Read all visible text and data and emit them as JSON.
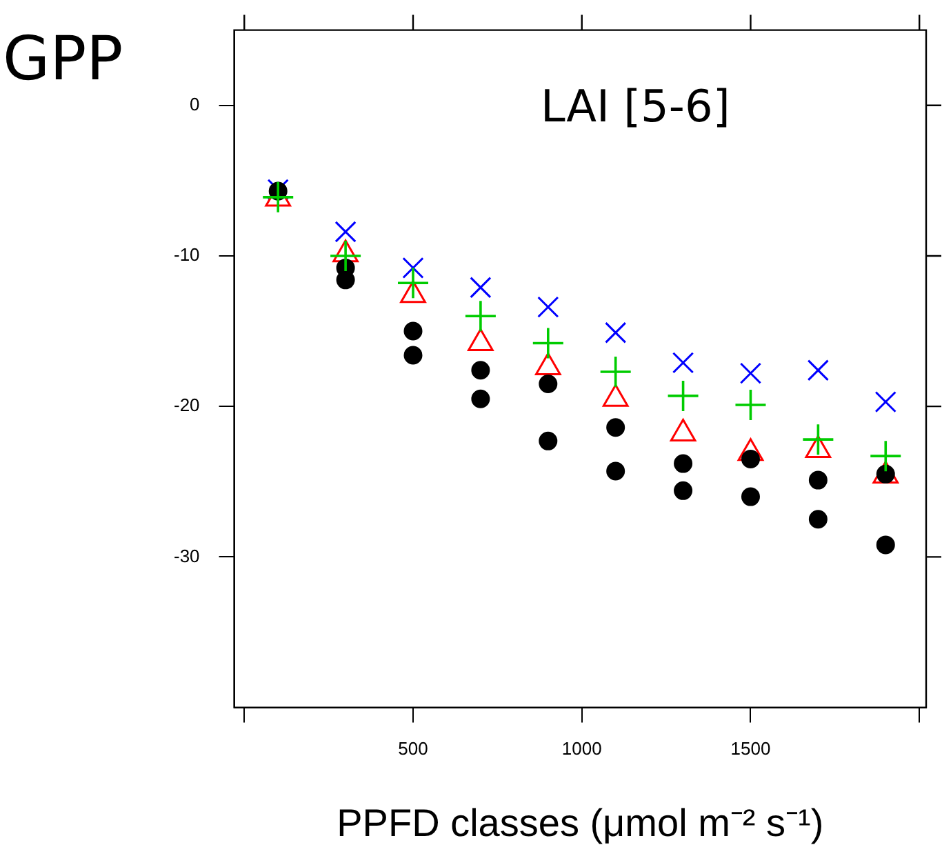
{
  "chart_data": {
    "type": "scatter",
    "title": "LAI [5-6]",
    "ylabel": "GPP",
    "xlabel": "PPFD classes (μmol m⁻² s⁻¹)",
    "x": [
      100,
      300,
      500,
      700,
      900,
      1100,
      1300,
      1500,
      1700,
      1900
    ],
    "series": [
      {
        "color": "#0000ff",
        "marker": "x",
        "values": [
          -5.6,
          -8.4,
          -10.8,
          -12.1,
          -13.4,
          -15.1,
          -17.1,
          -17.8,
          -17.6,
          -19.7
        ]
      },
      {
        "color": "#00cc00",
        "marker": "cross",
        "values": [
          -6.1,
          -10.0,
          -11.8,
          -14.0,
          -15.8,
          -17.7,
          -19.3,
          -19.9,
          -22.2,
          -23.3
        ]
      },
      {
        "color": "#ff0000",
        "marker": "triangle",
        "values": [
          -6.2,
          -9.9,
          -12.6,
          -15.8,
          -17.4,
          -19.5,
          -21.8,
          -23.1,
          -22.9,
          -24.6
        ]
      },
      {
        "color": "#000000",
        "marker": "circle",
        "values": [
          null,
          -10.8,
          -15.0,
          -17.6,
          -18.5,
          -21.4,
          -23.8,
          -23.5,
          -24.9,
          -24.5
        ]
      },
      {
        "color": "#000000",
        "marker": "circle",
        "values": [
          -5.7,
          -11.6,
          -16.6,
          -19.5,
          -22.3,
          -24.3,
          -25.6,
          -26.0,
          -27.5,
          -29.2
        ]
      }
    ],
    "xlim": [
      -30,
      2020
    ],
    "xticks": [
      {
        "value": 0,
        "label": null
      },
      500,
      1000,
      1500,
      {
        "value": 2000,
        "label": null
      }
    ],
    "ylim": [
      -40,
      5
    ],
    "yticks": [
      -30,
      -20,
      -10,
      0
    ],
    "grid": false,
    "legend": false
  }
}
